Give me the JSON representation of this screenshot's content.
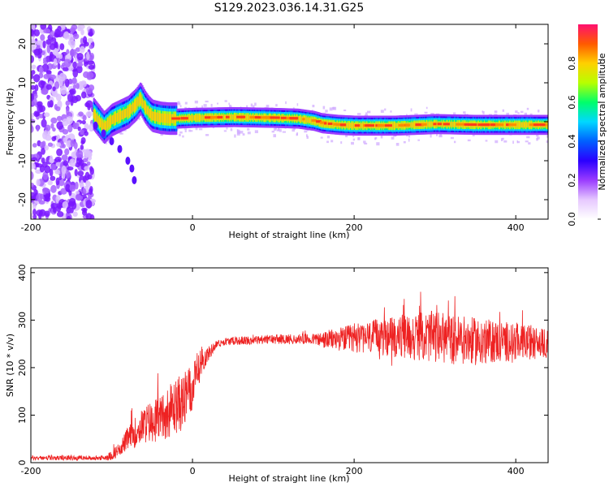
{
  "title": "S129.2023.036.14.31.G25",
  "colors": {
    "snr_line": "#ee2222",
    "colormap": [
      "#ffffff",
      "#e6c8ff",
      "#9a3cff",
      "#2a00ff",
      "#0060ff",
      "#00d8ff",
      "#00ff6a",
      "#b8ff00",
      "#ffd000",
      "#ff5a00",
      "#ff1070"
    ]
  },
  "chart_data": [
    {
      "type": "heatmap",
      "name": "spectrogram",
      "xlabel": "Height of straight line (km)",
      "ylabel": "Frequency (Hz)",
      "xlim": [
        -200,
        440
      ],
      "ylim": [
        -25,
        25
      ],
      "xticks": [
        -200,
        0,
        200,
        400
      ],
      "yticks": [
        -20,
        -10,
        0,
        10,
        20
      ],
      "colorbar": {
        "label": "Normalized spectral amplitude",
        "range": [
          0.0,
          1.0
        ],
        "ticks": [
          "0.0",
          "0.2",
          "0.4",
          "0.6",
          "0.8"
        ]
      },
      "ridge": {
        "x": [
          -125,
          -110,
          -100,
          -90,
          -80,
          -70,
          -65,
          -60,
          -55,
          -50,
          -40,
          -30,
          -20,
          0,
          50,
          100,
          130,
          150,
          160,
          180,
          200,
          250,
          300,
          350,
          400,
          440
        ],
        "y": [
          2.5,
          -1.5,
          0.5,
          1.5,
          2.5,
          4.5,
          6.0,
          4.0,
          2.5,
          1.5,
          1.0,
          0.8,
          0.8,
          1.0,
          1.2,
          1.0,
          0.8,
          0.2,
          -0.4,
          -0.8,
          -1.0,
          -1.0,
          -0.6,
          -0.8,
          -0.8,
          -0.8
        ]
      },
      "branch": {
        "x": [
          -120,
          -110,
          -100,
          -90,
          -80,
          -75,
          -72
        ],
        "y": [
          -1,
          -3,
          -5,
          -7,
          -10,
          -12,
          -15
        ]
      },
      "noise_region_x": [
        -200,
        -123
      ]
    },
    {
      "type": "line",
      "name": "snr",
      "xlabel": "Height of straight line (km)",
      "ylabel": "SNR (10 * v/v)",
      "xlim": [
        -200,
        440
      ],
      "ylim": [
        0,
        410
      ],
      "xticks": [
        -200,
        0,
        200,
        400
      ],
      "yticks": [
        0,
        100,
        200,
        300,
        400
      ],
      "envelope": {
        "x": [
          -200,
          -110,
          -100,
          -90,
          -80,
          -60,
          -40,
          -20,
          -10,
          0,
          10,
          20,
          30,
          40,
          100,
          150,
          160,
          200,
          250,
          300,
          350,
          400,
          440
        ],
        "mean": [
          10,
          10,
          15,
          30,
          50,
          80,
          95,
          120,
          130,
          155,
          210,
          230,
          250,
          255,
          260,
          260,
          258,
          262,
          265,
          265,
          255,
          255,
          250
        ],
        "spread": [
          5,
          5,
          10,
          15,
          25,
          40,
          50,
          60,
          60,
          50,
          30,
          15,
          8,
          8,
          10,
          12,
          18,
          30,
          45,
          55,
          50,
          40,
          30
        ]
      }
    }
  ]
}
